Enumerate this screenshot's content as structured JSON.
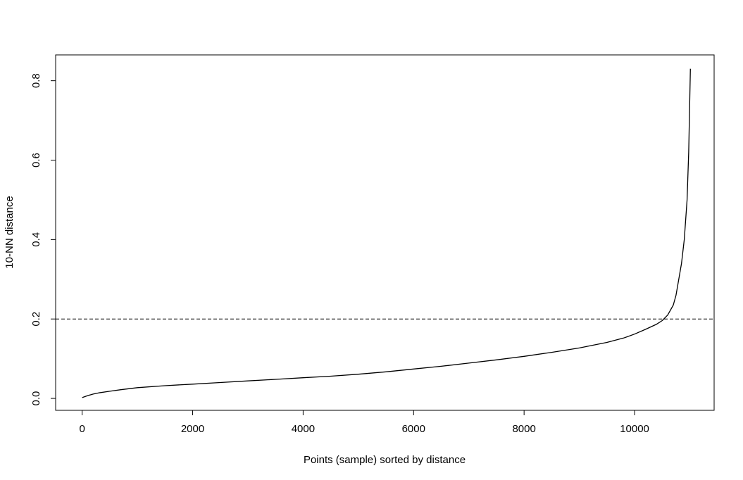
{
  "chart_data": {
    "type": "line",
    "title": "",
    "xlabel": "Points (sample) sorted by distance",
    "ylabel": "10-NN distance",
    "xlim": [
      -480,
      11440
    ],
    "ylim": [
      -0.03,
      0.865
    ],
    "x_ticks": [
      0,
      2000,
      4000,
      6000,
      8000,
      10000
    ],
    "x_tick_labels": [
      "0",
      "2000",
      "4000",
      "6000",
      "8000",
      "10000"
    ],
    "y_ticks": [
      0.0,
      0.2,
      0.4,
      0.6,
      0.8
    ],
    "y_tick_labels": [
      "0.0",
      "0.2",
      "0.4",
      "0.6",
      "0.8"
    ],
    "grid": false,
    "line_color": "#000000",
    "series": [
      {
        "x": [
          0,
          100,
          200,
          300,
          500,
          700,
          1000,
          1500,
          2000,
          2500,
          3000,
          3500,
          4000,
          4500,
          5000,
          5500,
          6000,
          6500,
          7000,
          7500,
          8000,
          8500,
          9000,
          9500,
          9800,
          10000,
          10200,
          10400,
          10500,
          10600,
          10700,
          10750,
          10800,
          10850,
          10900,
          10950,
          10980,
          11000,
          11010
        ],
        "y": [
          0.002,
          0.007,
          0.011,
          0.014,
          0.018,
          0.022,
          0.027,
          0.032,
          0.036,
          0.04,
          0.044,
          0.048,
          0.052,
          0.056,
          0.061,
          0.067,
          0.074,
          0.081,
          0.089,
          0.097,
          0.106,
          0.116,
          0.127,
          0.141,
          0.152,
          0.162,
          0.174,
          0.187,
          0.196,
          0.21,
          0.235,
          0.26,
          0.3,
          0.34,
          0.4,
          0.5,
          0.62,
          0.76,
          0.83
        ]
      }
    ],
    "reference_lines": [
      {
        "orientation": "horizontal",
        "y": 0.2,
        "style": "dashed",
        "color": "#000000"
      }
    ]
  }
}
